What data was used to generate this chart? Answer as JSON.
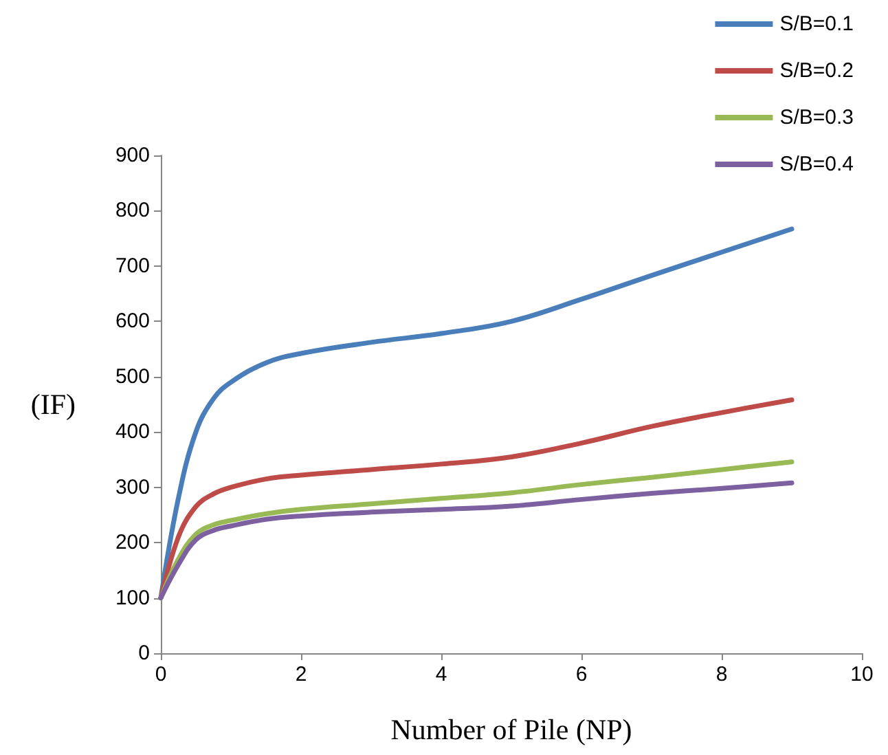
{
  "chart_data": {
    "type": "line",
    "xlabel": "Number of Pile (NP)",
    "ylabel": "(IF)",
    "xlim": [
      0,
      10
    ],
    "xticks": [
      0,
      2,
      4,
      6,
      8,
      10
    ],
    "ylim": [
      0,
      900
    ],
    "yticks": [
      0,
      100,
      200,
      300,
      400,
      500,
      600,
      700,
      800,
      900
    ],
    "x": [
      0,
      0.25,
      0.5,
      0.75,
      1,
      1.5,
      2,
      3,
      4,
      5,
      6,
      7,
      8,
      9
    ],
    "series": [
      {
        "name": "S/B=0.1",
        "color": "#4a7ebb",
        "values": [
          100,
          280,
          400,
          460,
          490,
          525,
          542,
          562,
          578,
          600,
          640,
          683,
          725,
          767
        ]
      },
      {
        "name": "S/B=0.2",
        "color": "#be4b48",
        "values": [
          100,
          210,
          265,
          288,
          300,
          315,
          322,
          332,
          342,
          355,
          380,
          410,
          435,
          458
        ]
      },
      {
        "name": "S/B=0.3",
        "color": "#98b954",
        "values": [
          100,
          170,
          215,
          232,
          240,
          252,
          260,
          270,
          280,
          290,
          305,
          318,
          332,
          346
        ]
      },
      {
        "name": "S/B=0.4",
        "color": "#7d60a0",
        "values": [
          100,
          160,
          205,
          222,
          230,
          242,
          248,
          255,
          260,
          266,
          278,
          289,
          298,
          308
        ]
      }
    ],
    "legend": "top right",
    "grid": false,
    "marker": "none",
    "line_style": "solid"
  }
}
